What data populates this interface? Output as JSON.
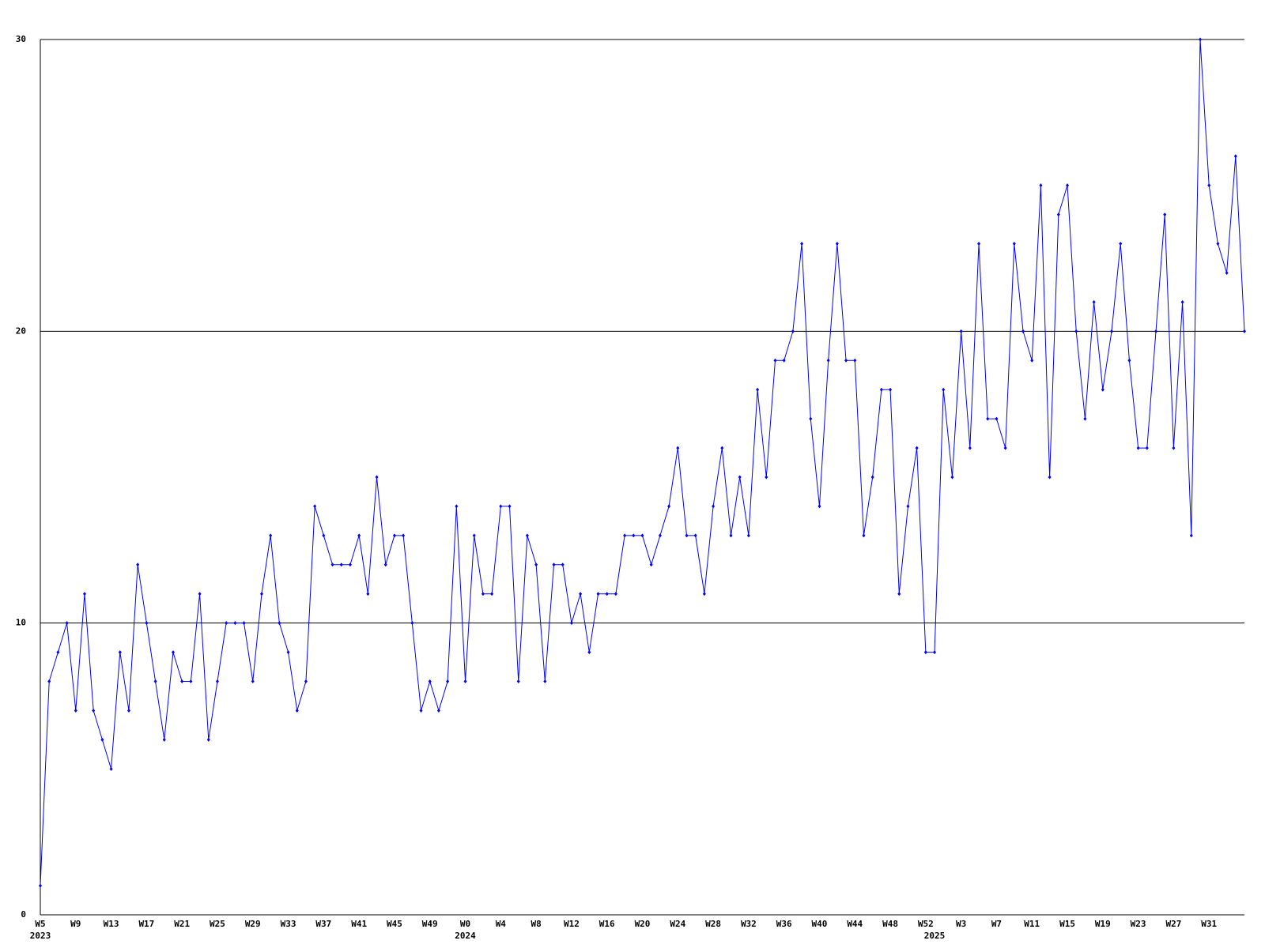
{
  "chart_data": {
    "type": "line",
    "categories": [
      "W5",
      null,
      null,
      null,
      "W9",
      null,
      null,
      null,
      "W13",
      null,
      null,
      null,
      "W17",
      null,
      null,
      null,
      "W21",
      null,
      null,
      null,
      "W25",
      null,
      null,
      null,
      "W29",
      null,
      null,
      null,
      "W33",
      null,
      null,
      null,
      "W37",
      null,
      null,
      null,
      "W41",
      null,
      null,
      null,
      "W45",
      null,
      null,
      null,
      "W49",
      null,
      null,
      null,
      "W0",
      null,
      null,
      null,
      "W4",
      null,
      null,
      null,
      "W8",
      null,
      null,
      null,
      "W12",
      null,
      null,
      null,
      "W16",
      null,
      null,
      null,
      "W20",
      null,
      null,
      null,
      "W24",
      null,
      null,
      null,
      "W28",
      null,
      null,
      null,
      "W32",
      null,
      null,
      null,
      "W36",
      null,
      null,
      null,
      "W40",
      null,
      null,
      null,
      "W44",
      null,
      null,
      null,
      "W48",
      null,
      null,
      null,
      "W52",
      null,
      null,
      null,
      "W3",
      null,
      null,
      null,
      "W7",
      null,
      null,
      null,
      "W11",
      null,
      null,
      null,
      "W15",
      null,
      null,
      null,
      "W19",
      null,
      null,
      null,
      "W23",
      null,
      null,
      null,
      "W27",
      null,
      null,
      null,
      "W31",
      null,
      null,
      null,
      null
    ],
    "year_labels": [
      "2023",
      null,
      null,
      null,
      null,
      null,
      null,
      null,
      null,
      null,
      null,
      null,
      null,
      null,
      null,
      null,
      null,
      null,
      null,
      null,
      null,
      null,
      null,
      null,
      null,
      null,
      null,
      null,
      null,
      null,
      null,
      null,
      null,
      null,
      null,
      null,
      null,
      null,
      null,
      null,
      null,
      null,
      null,
      null,
      null,
      null,
      null,
      null,
      "2024",
      null,
      null,
      null,
      null,
      null,
      null,
      null,
      null,
      null,
      null,
      null,
      null,
      null,
      null,
      null,
      null,
      null,
      null,
      null,
      null,
      null,
      null,
      null,
      null,
      null,
      null,
      null,
      null,
      null,
      null,
      null,
      null,
      null,
      null,
      null,
      null,
      null,
      null,
      null,
      null,
      null,
      null,
      null,
      null,
      null,
      null,
      null,
      null,
      null,
      null,
      null,
      null,
      "2025",
      null,
      null,
      null,
      null,
      null,
      null,
      null,
      null,
      null,
      null,
      null,
      null,
      null,
      null,
      null,
      null,
      null,
      null,
      null,
      null,
      null,
      null,
      null,
      null,
      null,
      null,
      null,
      null,
      null,
      null,
      null,
      null,
      null,
      null,
      null
    ],
    "series": [
      {
        "color": "#0000ff",
        "values": [
          1,
          8,
          9,
          10,
          7,
          11,
          7,
          6,
          5,
          9,
          7,
          12,
          10,
          8,
          6,
          9,
          8,
          8,
          11,
          6,
          8,
          10,
          10,
          10,
          8,
          11,
          13,
          10,
          9,
          7,
          8,
          14,
          13,
          12,
          12,
          12,
          13,
          11,
          15,
          12,
          13,
          13,
          10,
          7,
          8,
          7,
          8,
          14,
          8,
          13,
          11,
          11,
          14,
          14,
          8,
          13,
          12,
          8,
          12,
          12,
          10,
          11,
          9,
          11,
          11,
          11,
          13,
          13,
          13,
          12,
          13,
          14,
          16,
          13,
          13,
          11,
          14,
          16,
          13,
          15,
          13,
          18,
          15,
          19,
          19,
          20,
          23,
          17,
          14,
          19,
          23,
          19,
          19,
          13,
          15,
          18,
          18,
          11,
          14,
          16,
          9,
          9,
          18,
          15,
          20,
          16,
          23,
          17,
          17,
          16,
          23,
          20,
          19,
          25,
          15,
          24,
          25,
          20,
          17,
          21,
          18,
          20,
          23,
          19,
          16,
          16,
          20,
          24,
          16,
          21,
          13,
          30,
          25,
          23,
          22,
          26,
          20
        ]
      }
    ],
    "ylim": [
      0,
      30
    ],
    "yticks": [
      0,
      10,
      20,
      30
    ],
    "grid": true
  }
}
